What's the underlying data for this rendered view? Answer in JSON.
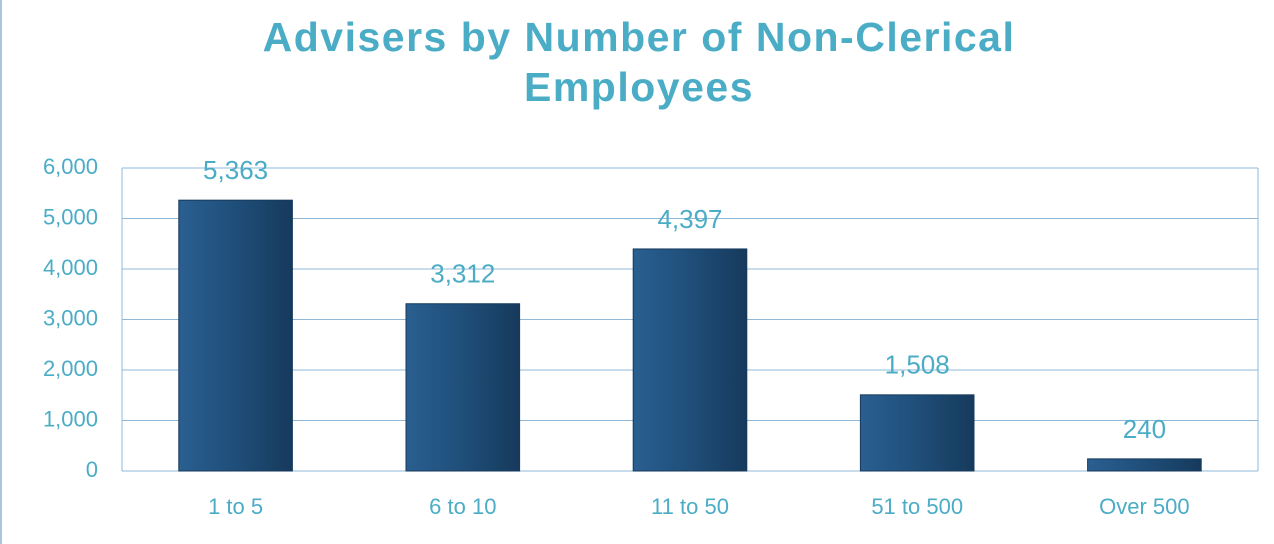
{
  "chart_data": {
    "type": "bar",
    "title": "Advisers by Number of Non-Clerical Employees",
    "categories": [
      "1 to 5",
      "6 to 10",
      "11 to 50",
      "51 to 500",
      "Over 500"
    ],
    "values": [
      5363,
      3312,
      4397,
      1508,
      240
    ],
    "value_labels": [
      "5,363",
      "3,312",
      "4,397",
      "1,508",
      "240"
    ],
    "color": "#1f4e79",
    "ylim": [
      0,
      6000
    ],
    "yticks": [
      0,
      {
        "value": 1000,
        "label": "1,000"
      },
      {
        "value": 2000,
        "label": "2,000"
      },
      {
        "value": 3000,
        "label": "3,000"
      },
      {
        "value": 4000,
        "label": "4,000"
      },
      {
        "value": 5000,
        "label": "5,000"
      },
      {
        "value": 6000,
        "label": "6,000"
      }
    ],
    "grid": true
  }
}
